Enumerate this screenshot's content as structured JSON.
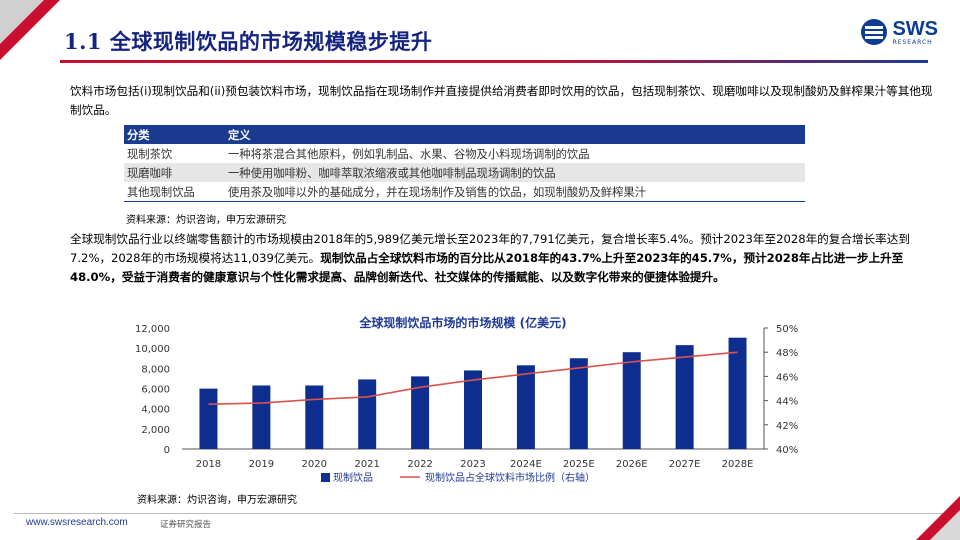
{
  "header": {
    "title": "1.1 全球现制饮品的市场规模稳步提升",
    "logo_text": "SWS",
    "logo_sub": "RESEARCH",
    "accent_red": "#c8102e",
    "accent_blue": "#14237f"
  },
  "intro": "饮料市场包括(i)现制饮品和(ii)预包装饮料市场，现制饮品指在现场制作并直接提供给消费者即时饮用的饮品，包括现制茶饮、现磨咖啡以及现制酸奶及鲜榨果汁等其他现制饮品。",
  "table": {
    "headers": [
      "分类",
      "定义"
    ],
    "rows": [
      [
        "现制茶饮",
        "一种将茶混合其他原料，例如乳制品、水果、谷物及小料现场调制的饮品"
      ],
      [
        "现磨咖啡",
        "一种使用咖啡粉、咖啡萃取浓缩液或其他咖啡制品现场调制的饮品"
      ],
      [
        "其他现制饮品",
        "使用茶及咖啡以外的基础成分，并在现场制作及销售的饮品，如现制酸奶及鲜榨果汁"
      ]
    ],
    "source": "资料来源：灼识咨询，申万宏源研究"
  },
  "summary": {
    "normal": "全球现制饮品行业以终端零售额计的市场规模由2018年的5,989亿美元增长至2023年的7,791亿美元，复合增长率5.4%。预计2023年至2028年的复合增长率达到7.2%，2028年的市场规模将达11,039亿美元。",
    "bold": "现制饮品占全球饮料市场的百分比从2018年的43.7%上升至2023年的45.7%，预计2028年占比进一步上升至48.0%，受益于消费者的健康意识与个性化需求提高、品牌创新迭代、社交媒体的传播赋能、以及数字化带来的便捷体验提升。"
  },
  "chart_data": {
    "type": "bar+line",
    "title": "全球现制饮品市场的市场规模 (亿美元)",
    "categories": [
      "2018",
      "2019",
      "2020",
      "2021",
      "2022",
      "2023",
      "2024E",
      "2025E",
      "2026E",
      "2027E",
      "2028E"
    ],
    "series": [
      {
        "name": "现制饮品",
        "type": "bar",
        "axis": "left",
        "color": "#0d2d8f",
        "values": [
          5989,
          6300,
          6300,
          6900,
          7200,
          7791,
          8300,
          9000,
          9600,
          10300,
          11039
        ]
      },
      {
        "name": "现制饮品占全球饮料市场比例（右轴）",
        "type": "line",
        "axis": "right",
        "color": "#d9534f",
        "values": [
          43.7,
          43.8,
          44.1,
          44.3,
          45.1,
          45.7,
          46.2,
          46.7,
          47.2,
          47.6,
          48.0
        ]
      }
    ],
    "y_left": {
      "min": 0,
      "max": 12000,
      "ticks": [
        "0",
        "2,000",
        "4,000",
        "6,000",
        "8,000",
        "10,000",
        "12,000"
      ]
    },
    "y_right": {
      "min": 40,
      "max": 50,
      "ticks": [
        "40%",
        "42%",
        "44%",
        "46%",
        "48%",
        "50%"
      ]
    },
    "legend_position": "bottom",
    "source": "资料来源：灼识咨询，申万宏源研究"
  },
  "footer": {
    "url": "www.swsresearch.com",
    "tag": "证券研究报告"
  }
}
